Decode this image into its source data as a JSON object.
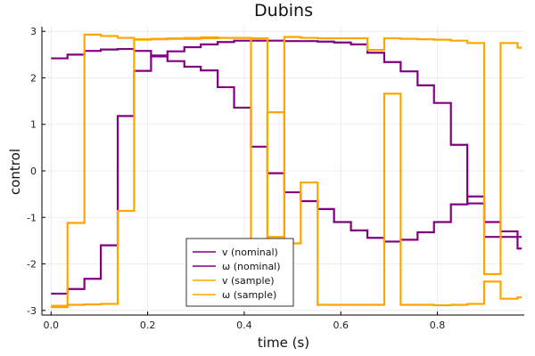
{
  "chart_data": {
    "type": "line",
    "title": "Dubins",
    "xlabel": "time (s)",
    "ylabel": "control",
    "xlim": [
      -0.019,
      0.98
    ],
    "ylim": [
      -3.1,
      3.1
    ],
    "xticks": [
      0.0,
      0.2,
      0.4,
      0.6,
      0.8
    ],
    "xtick_labels": [
      "0.0",
      "0.2",
      "0.4",
      "0.6",
      "0.8"
    ],
    "yticks": [
      -3,
      -2,
      -1,
      0,
      1,
      2,
      3
    ],
    "ytick_labels": [
      "-3",
      "-2",
      "-1",
      "0",
      "1",
      "2",
      "3"
    ],
    "grid": true,
    "legend_position": "bottom-center",
    "step": "post",
    "series": [
      {
        "name": "v (nominal)",
        "color": "#800080",
        "x": [
          0.0,
          0.034,
          0.069,
          0.103,
          0.138,
          0.172,
          0.207,
          0.241,
          0.276,
          0.31,
          0.345,
          0.379,
          0.414,
          0.448,
          0.483,
          0.517,
          0.552,
          0.586,
          0.621,
          0.655,
          0.69,
          0.724,
          0.759,
          0.793,
          0.828,
          0.862,
          0.897,
          0.931,
          0.966
        ],
        "values": [
          2.42,
          2.5,
          2.58,
          2.61,
          2.62,
          2.58,
          2.48,
          2.36,
          2.24,
          2.16,
          1.8,
          1.36,
          0.52,
          -0.05,
          -0.46,
          -0.65,
          -0.82,
          -1.1,
          -1.28,
          -1.44,
          -1.52,
          -1.48,
          -1.32,
          -1.1,
          -0.72,
          -0.55,
          -1.1,
          -1.3,
          -1.67
        ]
      },
      {
        "name": "ω (nominal)",
        "color": "#800080",
        "x": [
          0.0,
          0.034,
          0.069,
          0.103,
          0.138,
          0.172,
          0.207,
          0.241,
          0.276,
          0.31,
          0.345,
          0.379,
          0.414,
          0.448,
          0.483,
          0.517,
          0.552,
          0.586,
          0.621,
          0.655,
          0.69,
          0.724,
          0.759,
          0.793,
          0.828,
          0.862,
          0.897,
          0.931,
          0.966
        ],
        "values": [
          -2.64,
          -2.54,
          -2.32,
          -1.6,
          1.18,
          2.15,
          2.46,
          2.57,
          2.66,
          2.72,
          2.77,
          2.8,
          2.8,
          2.8,
          2.79,
          2.79,
          2.78,
          2.76,
          2.72,
          2.54,
          2.34,
          2.14,
          1.84,
          1.46,
          0.56,
          -0.7,
          -1.42,
          -1.42,
          -1.42
        ]
      },
      {
        "name": "v (sample)",
        "color": "#ffa500",
        "x": [
          0.0,
          0.034,
          0.069,
          0.103,
          0.138,
          0.172,
          0.207,
          0.241,
          0.276,
          0.31,
          0.345,
          0.379,
          0.414,
          0.448,
          0.483,
          0.517,
          0.552,
          0.586,
          0.621,
          0.655,
          0.69,
          0.724,
          0.759,
          0.793,
          0.828,
          0.862,
          0.897,
          0.931,
          0.966
        ],
        "values": [
          -2.9,
          -1.12,
          2.93,
          2.9,
          2.86,
          2.83,
          2.84,
          2.85,
          2.86,
          2.87,
          2.86,
          2.86,
          2.85,
          -1.42,
          2.88,
          2.86,
          2.85,
          2.85,
          2.85,
          2.6,
          2.85,
          2.84,
          2.83,
          2.82,
          2.8,
          2.75,
          -2.22,
          2.75,
          2.65
        ]
      },
      {
        "name": "ω (sample)",
        "color": "#ffa500",
        "x": [
          0.0,
          0.034,
          0.069,
          0.103,
          0.138,
          0.172,
          0.207,
          0.241,
          0.276,
          0.31,
          0.345,
          0.379,
          0.414,
          0.448,
          0.483,
          0.517,
          0.552,
          0.586,
          0.621,
          0.655,
          0.69,
          0.724,
          0.759,
          0.793,
          0.828,
          0.862,
          0.897,
          0.931,
          0.966
        ],
        "values": [
          -2.93,
          -2.88,
          -2.87,
          -2.86,
          -0.86,
          2.82,
          2.83,
          2.84,
          2.84,
          2.85,
          2.86,
          2.86,
          -2.2,
          1.26,
          -1.56,
          -0.25,
          -2.88,
          -2.88,
          -2.88,
          -2.88,
          1.66,
          -2.88,
          -2.88,
          -2.89,
          -2.88,
          -2.86,
          -2.38,
          -2.75,
          -2.72
        ]
      }
    ]
  }
}
